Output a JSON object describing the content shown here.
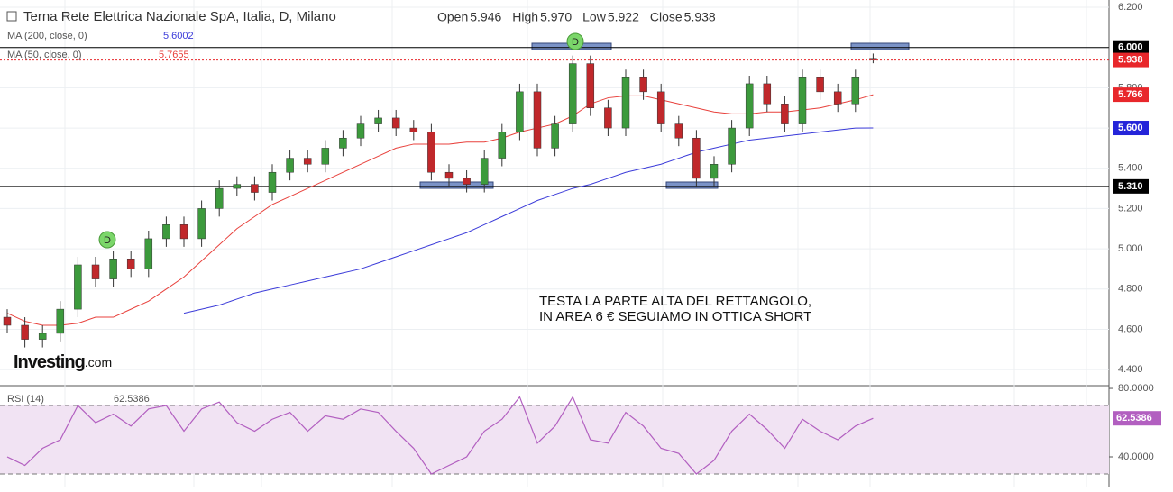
{
  "chart_data": {
    "type": "candlestick",
    "title": "Terna Rete Elettrica Nazionale SpA, Italia, D, Milano",
    "ohlc_header": [
      {
        "name": "Open",
        "value": "5.946"
      },
      {
        "name": "High",
        "value": "5.970"
      },
      {
        "name": "Low",
        "value": "5.922"
      },
      {
        "name": "Close",
        "value": "5.938"
      }
    ],
    "up_color": "#3c9a3c",
    "down_color": "#c0282b",
    "open": [
      4.66,
      4.62,
      4.55,
      4.58,
      4.7,
      4.92,
      4.85,
      4.95,
      4.9,
      5.05,
      5.12,
      5.05,
      5.2,
      5.3,
      5.32,
      5.28,
      5.38,
      5.45,
      5.42,
      5.5,
      5.55,
      5.62,
      5.65,
      5.6,
      5.58,
      5.38,
      5.35,
      5.32,
      5.45,
      5.58,
      5.78,
      5.5,
      5.62,
      5.92,
      5.7,
      5.6,
      5.85,
      5.78,
      5.62,
      5.55,
      5.35,
      5.42,
      5.6,
      5.82,
      5.72,
      5.62,
      5.85,
      5.78,
      5.72,
      5.946
    ],
    "high": [
      4.7,
      4.66,
      4.62,
      4.74,
      4.96,
      4.96,
      4.99,
      4.99,
      5.09,
      5.16,
      5.16,
      5.24,
      5.34,
      5.36,
      5.36,
      5.42,
      5.49,
      5.49,
      5.54,
      5.59,
      5.66,
      5.69,
      5.69,
      5.64,
      5.62,
      5.42,
      5.39,
      5.49,
      5.62,
      5.82,
      5.82,
      5.66,
      5.96,
      5.96,
      5.74,
      5.89,
      5.89,
      5.82,
      5.66,
      5.59,
      5.46,
      5.64,
      5.86,
      5.86,
      5.76,
      5.89,
      5.89,
      5.82,
      5.89,
      5.97
    ],
    "low": [
      4.58,
      4.51,
      4.51,
      4.54,
      4.66,
      4.81,
      4.81,
      4.86,
      4.86,
      5.01,
      5.01,
      5.01,
      5.16,
      5.26,
      5.24,
      5.24,
      5.34,
      5.38,
      5.38,
      5.46,
      5.51,
      5.58,
      5.56,
      5.54,
      5.34,
      5.31,
      5.28,
      5.28,
      5.41,
      5.54,
      5.46,
      5.46,
      5.58,
      5.66,
      5.56,
      5.56,
      5.74,
      5.58,
      5.51,
      5.31,
      5.31,
      5.38,
      5.56,
      5.68,
      5.58,
      5.58,
      5.74,
      5.68,
      5.68,
      5.922
    ],
    "close": [
      4.62,
      4.55,
      4.58,
      4.7,
      4.92,
      4.85,
      4.95,
      4.9,
      5.05,
      5.12,
      5.05,
      5.2,
      5.3,
      5.32,
      5.28,
      5.38,
      5.45,
      5.42,
      5.5,
      5.55,
      5.62,
      5.65,
      5.6,
      5.58,
      5.38,
      5.35,
      5.32,
      5.45,
      5.58,
      5.78,
      5.5,
      5.62,
      5.92,
      5.7,
      5.6,
      5.85,
      5.78,
      5.62,
      5.55,
      5.35,
      5.42,
      5.6,
      5.82,
      5.72,
      5.62,
      5.85,
      5.78,
      5.72,
      5.85,
      5.938
    ],
    "series": [
      {
        "name": "MA (200, close, 0)",
        "last": "5.6002",
        "color": "#3b3bd9",
        "values": [
          null,
          null,
          null,
          null,
          null,
          null,
          null,
          null,
          null,
          null,
          4.68,
          4.7,
          4.72,
          4.75,
          4.78,
          4.8,
          4.82,
          4.84,
          4.86,
          4.88,
          4.9,
          4.93,
          4.96,
          4.99,
          5.02,
          5.05,
          5.08,
          5.12,
          5.16,
          5.2,
          5.24,
          5.27,
          5.3,
          5.32,
          5.35,
          5.38,
          5.4,
          5.42,
          5.45,
          5.48,
          5.5,
          5.52,
          5.54,
          5.55,
          5.56,
          5.57,
          5.58,
          5.59,
          5.6,
          5.6002
        ]
      },
      {
        "name": "MA (50, close, 0)",
        "last": "5.7655",
        "color": "#e8413c",
        "values": [
          4.68,
          4.64,
          4.62,
          4.62,
          4.63,
          4.66,
          4.66,
          4.7,
          4.74,
          4.8,
          4.86,
          4.94,
          5.02,
          5.1,
          5.16,
          5.22,
          5.26,
          5.3,
          5.34,
          5.38,
          5.42,
          5.46,
          5.5,
          5.52,
          5.52,
          5.52,
          5.53,
          5.53,
          5.55,
          5.58,
          5.6,
          5.62,
          5.66,
          5.72,
          5.75,
          5.76,
          5.76,
          5.74,
          5.72,
          5.7,
          5.68,
          5.67,
          5.67,
          5.68,
          5.68,
          5.69,
          5.7,
          5.72,
          5.74,
          5.7655
        ]
      }
    ],
    "ylim": [
      4.32,
      6.236
    ],
    "yticks": [
      {
        "value": 4.4,
        "label": "4.400"
      },
      {
        "value": 4.6,
        "label": "4.600"
      },
      {
        "value": 4.8,
        "label": "4.800"
      },
      {
        "value": 5.0,
        "label": "5.000"
      },
      {
        "value": 5.2,
        "label": "5.200"
      },
      {
        "value": 5.4,
        "label": "5.400"
      },
      {
        "value": 5.6,
        "label": "5.600"
      },
      {
        "value": 5.8,
        "label": "5.800"
      },
      {
        "value": 6.0,
        "label": "6.000"
      },
      {
        "value": 6.2,
        "label": "6.200"
      }
    ],
    "levels": [
      {
        "value": 6.0,
        "label": "6.000",
        "color": "#000000"
      },
      {
        "value": 5.31,
        "label": "5.310",
        "color": "#000000"
      }
    ],
    "price_tags": [
      {
        "value": 5.938,
        "label": "5.938",
        "color": "#e8272b"
      },
      {
        "value": 5.7655,
        "label": "5.766",
        "color": "#e8272b"
      },
      {
        "value": 5.6002,
        "label": "5.600",
        "color": "#2424d9"
      }
    ],
    "markers": [
      "D",
      "D"
    ],
    "annotation": [
      "TESTA LA PARTE ALTA DEL RETTANGOLO,",
      "IN AREA 6 € SEGUIAMO IN OTTICA SHORT"
    ],
    "logo": [
      "Investing",
      ".com"
    ],
    "rsi": {
      "name": "RSI (14)",
      "last": "62.5386",
      "color": "#b25fc0",
      "band_color": "#f1e3f3",
      "bands": [
        30,
        70
      ],
      "values": [
        40,
        35,
        45,
        50,
        70,
        60,
        65,
        58,
        68,
        70,
        55,
        68,
        72,
        60,
        55,
        62,
        66,
        55,
        64,
        62,
        68,
        66,
        55,
        45,
        30,
        35,
        40,
        55,
        62,
        75,
        48,
        58,
        75,
        50,
        48,
        66,
        58,
        45,
        42,
        30,
        38,
        55,
        65,
        56,
        45,
        62,
        55,
        50,
        58,
        62.5386
      ],
      "ylim": [
        22.1,
        81.6
      ],
      "yticks": [
        {
          "value": 40,
          "label": "40.0000"
        },
        {
          "value": 80,
          "label": "80.0000"
        }
      ],
      "tag": {
        "value": 62.5386,
        "label": "62.5386"
      }
    }
  }
}
